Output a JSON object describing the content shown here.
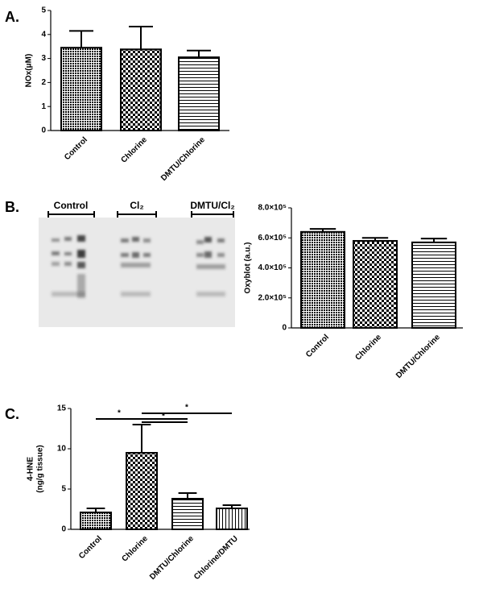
{
  "chart_data": [
    {
      "type": "bar",
      "panel_label": "A.",
      "ylabel": [
        "NOx(μM)"
      ],
      "categories": [
        "Control",
        "Chlorine",
        "DMTU/Chlorine"
      ],
      "values": [
        3.45,
        3.38,
        3.05
      ],
      "errors": [
        0.7,
        0.95,
        0.28
      ],
      "color": "#000000",
      "ylim": [
        0,
        5
      ],
      "yticks": [
        0,
        1,
        2,
        3,
        4,
        5
      ]
    },
    {
      "type": "bar",
      "panel_label": "B.",
      "ylabel": [
        "Oxyblot  (a.u.)"
      ],
      "blot_labels": [
        "Control",
        "Cl₂",
        "DMTU/Cl₂"
      ],
      "categories": [
        "Control",
        "Chlorine",
        "DMTU/Chlorine"
      ],
      "values": [
        640000,
        580000,
        570000
      ],
      "errors": [
        20000,
        20000,
        25000
      ],
      "color": "#000000",
      "ylim": [
        0,
        800000
      ],
      "yticks": [
        0,
        {
          "value": 200000,
          "label": "2.0×10⁵"
        },
        {
          "value": 400000,
          "label": "4.0×10⁵"
        },
        {
          "value": 600000,
          "label": "6.0×10⁵"
        },
        {
          "value": 800000,
          "label": "8.0×10⁵"
        }
      ]
    },
    {
      "type": "bar",
      "panel_label": "C.",
      "ylabel": [
        "4-HNE",
        "(ng/g tissue)"
      ],
      "categories": [
        "Control",
        "Chlorine",
        "DMTU/Chlorine",
        "Chlorine/DMTU"
      ],
      "values": [
        2.1,
        9.5,
        3.8,
        2.6
      ],
      "errors": [
        0.5,
        3.5,
        0.7,
        0.4
      ],
      "color": "#000000",
      "ylim": [
        0,
        15
      ],
      "yticks": [
        0,
        5,
        10,
        15
      ],
      "annotations": [
        "*",
        "*",
        "*"
      ]
    }
  ]
}
